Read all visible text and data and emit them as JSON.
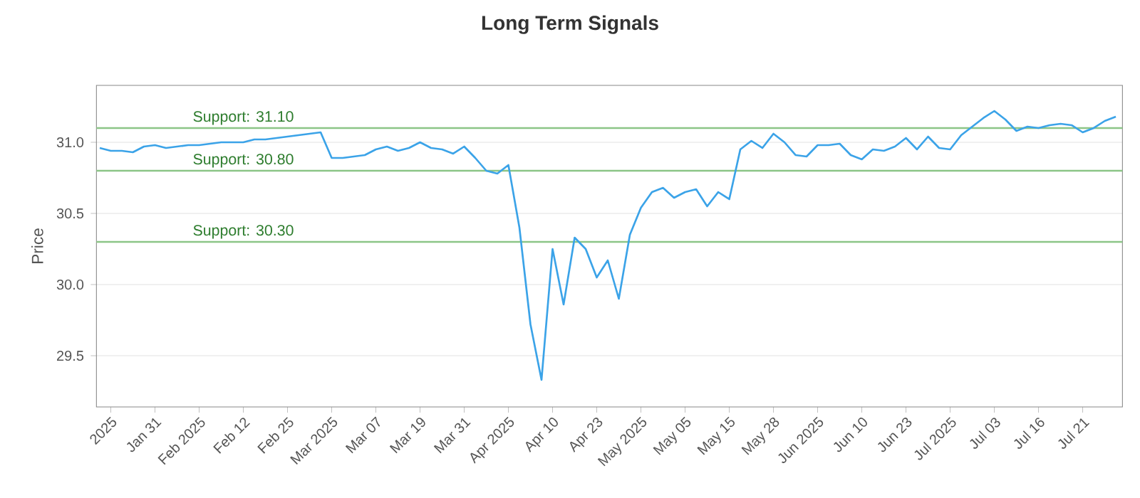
{
  "chart_data": {
    "type": "line",
    "title": "Long Term Signals",
    "ylabel": "Price",
    "categories": [
      null,
      "2025",
      null,
      null,
      null,
      "Jan 31",
      null,
      null,
      null,
      "Feb 2025",
      null,
      null,
      null,
      "Feb 12",
      null,
      null,
      null,
      "Feb 25",
      null,
      null,
      null,
      "Mar 2025",
      null,
      null,
      null,
      "Mar 07",
      null,
      null,
      null,
      "Mar 19",
      null,
      null,
      null,
      "Mar 31",
      null,
      null,
      null,
      "Apr 2025",
      null,
      null,
      null,
      "Apr 10",
      null,
      null,
      null,
      "Apr 23",
      null,
      null,
      null,
      "May 2025",
      null,
      null,
      null,
      "May 05",
      null,
      null,
      null,
      "May 15",
      null,
      null,
      null,
      "May 28",
      null,
      null,
      null,
      "Jun 2025",
      null,
      null,
      null,
      "Jun 10",
      null,
      null,
      null,
      "Jun 23",
      null,
      null,
      null,
      "Jul 2025",
      null,
      null,
      null,
      "Jul 03",
      null,
      null,
      null,
      "Jul 16",
      null,
      null,
      null,
      "Jul 21",
      null,
      null,
      null
    ],
    "series": [
      {
        "color": "#3ba3e8",
        "values": [
          30.96,
          30.94,
          30.94,
          30.93,
          30.97,
          30.98,
          30.96,
          30.97,
          30.98,
          30.98,
          30.99,
          31.0,
          31.0,
          31.0,
          31.02,
          31.02,
          31.03,
          31.04,
          31.05,
          31.06,
          31.07,
          30.89,
          30.89,
          30.9,
          30.91,
          30.95,
          30.97,
          30.94,
          30.96,
          31.0,
          30.96,
          30.95,
          30.92,
          30.97,
          30.89,
          30.8,
          30.78,
          30.84,
          30.4,
          29.72,
          29.33,
          30.25,
          29.86,
          30.33,
          30.25,
          30.05,
          30.17,
          29.9,
          30.35,
          30.54,
          30.65,
          30.68,
          30.61,
          30.65,
          30.67,
          30.55,
          30.65,
          30.6,
          30.95,
          31.01,
          30.96,
          31.06,
          31.0,
          30.91,
          30.9,
          30.98,
          30.98,
          30.99,
          30.91,
          30.88,
          30.95,
          30.94,
          30.97,
          31.03,
          30.95,
          31.04,
          30.96,
          30.95,
          31.05,
          31.11,
          31.17,
          31.22,
          31.16,
          31.08,
          31.11,
          31.1,
          31.12,
          31.13,
          31.12,
          31.07,
          31.1,
          31.15,
          31.18
        ]
      }
    ],
    "ylim": [
      29.14,
      31.4
    ],
    "yticks": [
      29.5,
      {
        "value": 30.0,
        "label": "30.0"
      },
      30.5,
      {
        "value": 31.0,
        "label": "31.0"
      }
    ],
    "grid": "y",
    "marker": "none",
    "line_style": "solid",
    "ref_lines": [
      {
        "axis": "y",
        "value": 31.1,
        "label": "Support: 31.10",
        "color": "#8cc587"
      },
      {
        "axis": "y",
        "value": 30.8,
        "label": "Support: 30.80",
        "color": "#8cc587"
      },
      {
        "axis": "y",
        "value": 30.3,
        "label": "Support: 30.30",
        "color": "#8cc587"
      }
    ]
  }
}
